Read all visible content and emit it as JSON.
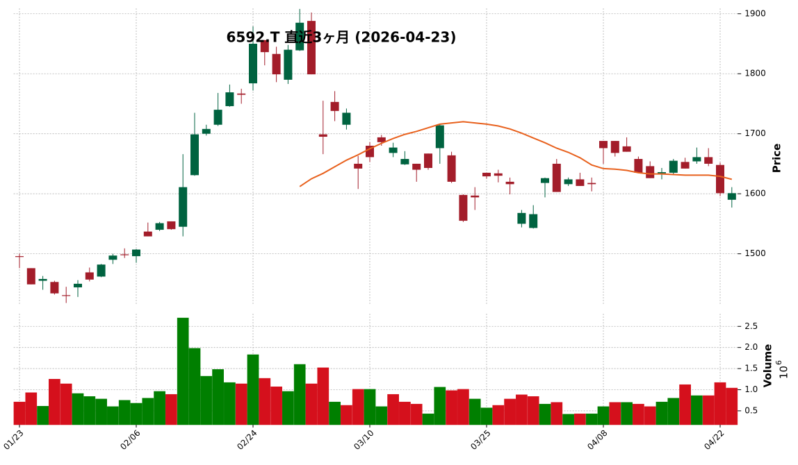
{
  "chart_data": {
    "type": "candlestick",
    "title": "6592.T  直近3ヶ月 (2026-04-23)",
    "categories": [
      "01/23",
      null,
      null,
      null,
      null,
      null,
      null,
      null,
      null,
      null,
      "02/06",
      null,
      null,
      null,
      null,
      null,
      null,
      null,
      null,
      null,
      "02/24",
      null,
      null,
      null,
      null,
      null,
      null,
      null,
      null,
      null,
      "03/10",
      null,
      null,
      null,
      null,
      null,
      null,
      null,
      null,
      null,
      "03/25",
      null,
      null,
      null,
      null,
      null,
      null,
      null,
      null,
      null,
      "04/08",
      null,
      null,
      null,
      null,
      null,
      null,
      null,
      null,
      null,
      "04/22",
      null
    ],
    "ylabel": "Price",
    "ylim": [
      1414,
      1909
    ],
    "yticks": [
      1500,
      1600,
      1700,
      1800,
      1900
    ],
    "grid": true,
    "up_color": "#006340",
    "down_color": "#a31d2a",
    "open": [
      1496,
      1476,
      1455,
      1453,
      1431,
      1444,
      1469,
      1462,
      1490,
      1499,
      1496,
      1537,
      1540,
      1554,
      1545,
      1631,
      1700,
      1715,
      1746,
      1767,
      1784,
      1856,
      1833,
      1790,
      1839,
      1888,
      1699,
      1753,
      1715,
      1650,
      1680,
      1694,
      1668,
      1649,
      1650,
      1667,
      1676,
      1664,
      1598,
      1597,
      1635,
      1634,
      1620,
      1550,
      1543,
      1618,
      1650,
      1616,
      1624,
      1618,
      1688,
      1688,
      1679,
      1658,
      1646,
      1634,
      1635,
      1653,
      1654,
      1661,
      1648,
      1590
    ],
    "high": [
      1500,
      1476,
      1463,
      1455,
      1445,
      1456,
      1477,
      1483,
      1500,
      1509,
      1508,
      1552,
      1553,
      1554,
      1666,
      1735,
      1715,
      1768,
      1782,
      1775,
      1879,
      1856,
      1845,
      1848,
      1908,
      1902,
      1755,
      1771,
      1742,
      1663,
      1686,
      1698,
      1685,
      1671,
      1650,
      1667,
      1717,
      1670,
      1599,
      1611,
      1635,
      1640,
      1627,
      1573,
      1581,
      1627,
      1658,
      1627,
      1635,
      1627,
      1688,
      1688,
      1694,
      1662,
      1654,
      1643,
      1658,
      1660,
      1677,
      1676,
      1652,
      1611
    ],
    "low": [
      1476,
      1449,
      1440,
      1432,
      1418,
      1428,
      1454,
      1461,
      1483,
      1493,
      1485,
      1529,
      1538,
      1540,
      1529,
      1630,
      1697,
      1713,
      1745,
      1750,
      1772,
      1814,
      1786,
      1783,
      1838,
      1799,
      1666,
      1721,
      1707,
      1608,
      1653,
      1680,
      1661,
      1648,
      1620,
      1640,
      1650,
      1618,
      1553,
      1573,
      1625,
      1619,
      1599,
      1544,
      1542,
      1594,
      1603,
      1613,
      1613,
      1604,
      1650,
      1662,
      1670,
      1635,
      1626,
      1624,
      1632,
      1642,
      1650,
      1646,
      1596,
      1577
    ],
    "close": [
      1495,
      1449,
      1458,
      1434,
      1430,
      1450,
      1457,
      1482,
      1497,
      1498,
      1507,
      1529,
      1551,
      1541,
      1611,
      1699,
      1708,
      1740,
      1769,
      1765,
      1850,
      1836,
      1799,
      1840,
      1885,
      1799,
      1695,
      1738,
      1735,
      1642,
      1661,
      1686,
      1677,
      1658,
      1640,
      1643,
      1714,
      1620,
      1555,
      1594,
      1629,
      1630,
      1616,
      1568,
      1566,
      1626,
      1603,
      1624,
      1613,
      1616,
      1676,
      1668,
      1670,
      1635,
      1626,
      1636,
      1655,
      1642,
      1661,
      1650,
      1601,
      1601
    ],
    "moving_average": {
      "color": "#e8601c",
      "values": [
        null,
        null,
        null,
        null,
        null,
        null,
        null,
        null,
        null,
        null,
        null,
        null,
        null,
        null,
        null,
        null,
        null,
        null,
        null,
        null,
        null,
        null,
        null,
        null,
        1612,
        1625,
        1634,
        1645,
        1656,
        1665,
        1675,
        1684,
        1692,
        1699,
        1704,
        1710,
        1716,
        1718,
        1720,
        1718,
        1716,
        1713,
        1708,
        1701,
        1693,
        1685,
        1676,
        1669,
        1660,
        1648,
        1642,
        1641,
        1639,
        1635,
        1633,
        1633,
        1632,
        1631,
        1631,
        1631,
        1629,
        1624
      ]
    },
    "volume": {
      "ylabel": "Volume",
      "unit_base": "10",
      "unit_exponent": "6",
      "ylim": [
        0.17,
        2.8
      ],
      "yticks": [
        0.5,
        {
          "value": 1,
          "label": "1.0"
        },
        1.5,
        {
          "value": 2,
          "label": "2.0"
        },
        2.5
      ],
      "values": [
        0.71,
        0.93,
        0.61,
        1.25,
        1.14,
        0.91,
        0.84,
        0.78,
        0.6,
        0.75,
        0.68,
        0.8,
        0.96,
        0.89,
        2.7,
        1.98,
        1.32,
        1.48,
        1.17,
        1.14,
        1.83,
        1.27,
        1.07,
        0.96,
        1.6,
        1.14,
        1.52,
        0.71,
        0.63,
        1.01,
        1.01,
        0.6,
        0.89,
        0.71,
        0.66,
        0.43,
        1.06,
        0.98,
        1.01,
        0.78,
        0.57,
        0.63,
        0.78,
        0.88,
        0.84,
        0.66,
        0.7,
        0.42,
        0.43,
        0.43,
        0.6,
        0.7,
        0.7,
        0.66,
        0.6,
        0.71,
        0.8,
        1.12,
        0.86,
        0.86,
        1.17,
        1.04
      ],
      "colors": [
        "#d5101c",
        "#d5101c",
        "#007f00",
        "#d5101c",
        "#d5101c",
        "#007f00",
        "#007f00",
        "#007f00",
        "#007f00",
        "#007f00",
        "#007f00",
        "#007f00",
        "#007f00",
        "#d5101c",
        "#007f00",
        "#007f00",
        "#007f00",
        "#007f00",
        "#007f00",
        "#d5101c",
        "#007f00",
        "#d5101c",
        "#d5101c",
        "#007f00",
        "#007f00",
        "#d5101c",
        "#d5101c",
        "#007f00",
        "#d5101c",
        "#d5101c",
        "#007f00",
        "#007f00",
        "#d5101c",
        "#d5101c",
        "#d5101c",
        "#007f00",
        "#007f00",
        "#d5101c",
        "#d5101c",
        "#007f00",
        "#007f00",
        "#d5101c",
        "#d5101c",
        "#d5101c",
        "#d5101c",
        "#007f00",
        "#d5101c",
        "#007f00",
        "#d5101c",
        "#007f00",
        "#007f00",
        "#d5101c",
        "#007f00",
        "#d5101c",
        "#d5101c",
        "#007f00",
        "#007f00",
        "#d5101c",
        "#007f00",
        "#d5101c",
        "#d5101c",
        "#d5101c"
      ]
    }
  }
}
